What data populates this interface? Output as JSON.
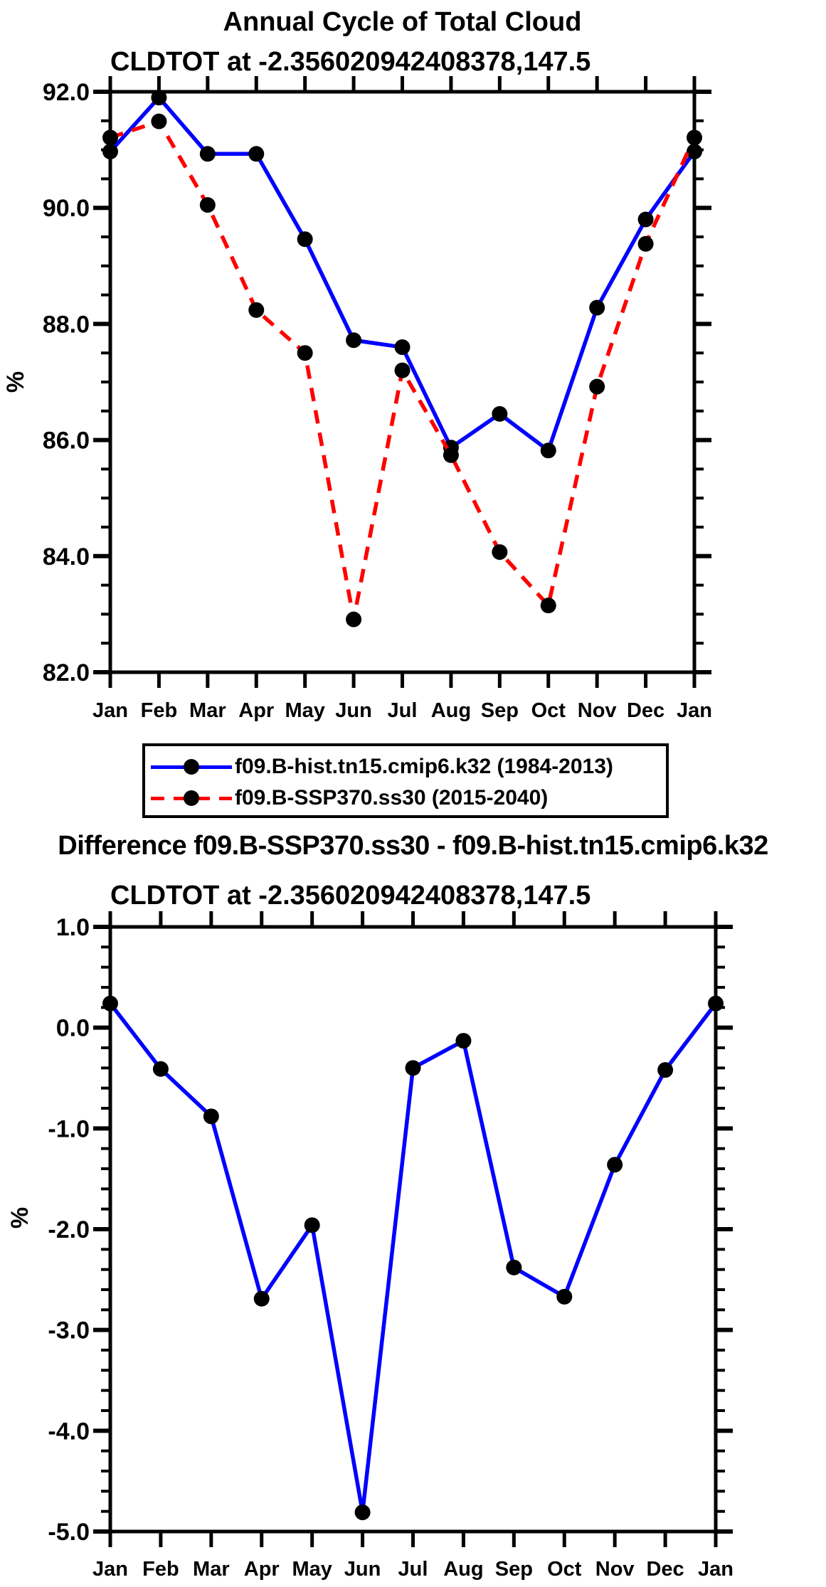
{
  "colors": {
    "hist_line": "#0000ff",
    "ssp_line": "#ff0000",
    "diff_line": "#0000ff",
    "marker": "#000000",
    "axis": "#000000",
    "background": "#ffffff"
  },
  "legend": {
    "entries": [
      {
        "label": "f09.B-hist.tn15.cmip6.k32 (1984-2013)",
        "color": "#0000ff",
        "line_style": "solid",
        "marker": "circle"
      },
      {
        "label": "f09.B-SSP370.ss30 (2015-2040)",
        "color": "#ff0000",
        "line_style": "dashed",
        "marker": "circle"
      }
    ]
  },
  "chart_data": [
    {
      "type": "line",
      "title": "Annual Cycle of Total Cloud",
      "subtitle": "CLDTOT at -2.356020942408378,147.5",
      "ylabel": "%",
      "xlabel": "",
      "categories": [
        "Jan",
        "Feb",
        "Mar",
        "Apr",
        "May",
        "Jun",
        "Jul",
        "Aug",
        "Sep",
        "Oct",
        "Nov",
        "Dec",
        "Jan"
      ],
      "series": [
        {
          "name": "f09.B-hist.tn15.cmip6.k32 (1984-2013)",
          "color": "#0000ff",
          "line_style": "solid",
          "marker": "circle",
          "marker_color": "#000000",
          "values": [
            90.97,
            91.9,
            90.93,
            90.93,
            89.46,
            87.72,
            87.6,
            85.87,
            86.45,
            85.82,
            88.28,
            89.8,
            90.97
          ]
        },
        {
          "name": "f09.B-SSP370.ss30 (2015-2040)",
          "color": "#ff0000",
          "line_style": "dashed",
          "marker": "circle",
          "marker_color": "#000000",
          "values": [
            91.21,
            91.49,
            90.05,
            88.24,
            87.5,
            82.91,
            87.2,
            85.74,
            84.07,
            83.15,
            86.92,
            89.38,
            91.21
          ]
        }
      ],
      "ylim": [
        82,
        92
      ],
      "y_major_step": 2,
      "y_minor_step": 0.5,
      "y_tick_labels": [
        "82.0",
        "84.0",
        "86.0",
        "88.0",
        "90.0",
        "92.0"
      ],
      "grid": false,
      "legend_position": "below"
    },
    {
      "type": "line",
      "title": "Difference f09.B-SSP370.ss30 - f09.B-hist.tn15.cmip6.k32",
      "subtitle": "CLDTOT at -2.356020942408378,147.5",
      "ylabel": "%",
      "xlabel": "",
      "categories": [
        "Jan",
        "Feb",
        "Mar",
        "Apr",
        "May",
        "Jun",
        "Jul",
        "Aug",
        "Sep",
        "Oct",
        "Nov",
        "Dec",
        "Jan"
      ],
      "series": [
        {
          "name": "difference",
          "color": "#0000ff",
          "line_style": "solid",
          "marker": "circle",
          "marker_color": "#000000",
          "values": [
            0.24,
            -0.41,
            -0.88,
            -2.69,
            -1.96,
            -4.81,
            -0.4,
            -0.13,
            -2.38,
            -2.67,
            -1.36,
            -0.42,
            0.24
          ]
        }
      ],
      "ylim": [
        -5,
        1
      ],
      "y_major_step": 1,
      "y_minor_step": 0.2,
      "y_tick_labels": [
        "-5.0",
        "-4.0",
        "-3.0",
        "-2.0",
        "-1.0",
        "0.0",
        "1.0"
      ],
      "grid": false,
      "legend_position": "none"
    }
  ]
}
